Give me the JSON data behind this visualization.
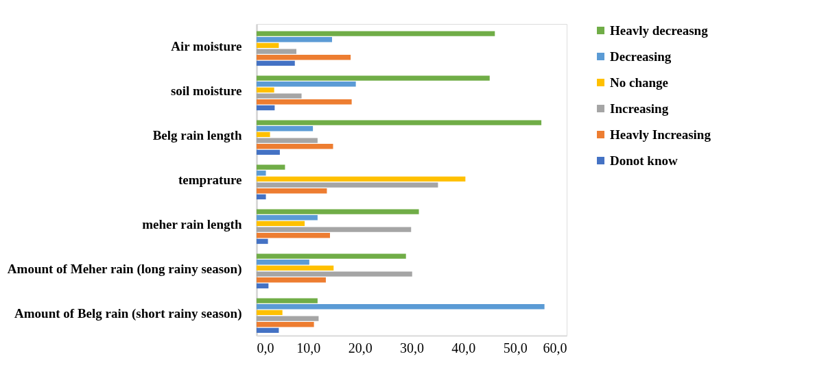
{
  "chart_data": {
    "type": "bar",
    "orientation": "horizontal",
    "categories": [
      "Air moisture",
      "soil moisture",
      "Belg rain length",
      "temprature",
      "meher rain length",
      "Amount of Meher rain (long rainy season)",
      "Amount of Belg rain (short rainy season)"
    ],
    "series": [
      {
        "name": "Heavly decreasng",
        "color": "#70ad47",
        "values": [
          46.1,
          45.1,
          55.1,
          5.5,
          31.4,
          28.9,
          11.8
        ]
      },
      {
        "name": "Decreasing",
        "color": "#5b9bd5",
        "values": [
          14.6,
          19.2,
          10.9,
          1.8,
          11.8,
          10.2,
          55.7
        ]
      },
      {
        "name": "No change",
        "color": "#ffc000",
        "values": [
          4.3,
          3.4,
          2.6,
          40.4,
          9.3,
          14.9,
          5.0
        ]
      },
      {
        "name": "Increasing",
        "color": "#a5a5a5",
        "values": [
          7.7,
          8.7,
          11.8,
          35.1,
          29.9,
          30.1,
          12.0
        ]
      },
      {
        "name": "Heavly Increasing",
        "color": "#ed7d31",
        "values": [
          18.2,
          18.4,
          14.8,
          13.6,
          14.2,
          13.4,
          11.1
        ]
      },
      {
        "name": "Donot know",
        "color": "#4472c4",
        "values": [
          7.4,
          3.5,
          4.5,
          1.8,
          2.2,
          2.3,
          4.3
        ]
      }
    ],
    "xlim": [
      0,
      60
    ],
    "xticks": [
      {
        "value": 0,
        "label": "0,0"
      },
      {
        "value": 10,
        "label": "10,0"
      },
      {
        "value": 20,
        "label": "20,0"
      },
      {
        "value": 30,
        "label": "30,0"
      },
      {
        "value": 40,
        "label": "40,0"
      },
      {
        "value": 50,
        "label": "50,0"
      },
      {
        "value": 60,
        "label": "60,0"
      }
    ],
    "grid": false,
    "legend": "right"
  }
}
